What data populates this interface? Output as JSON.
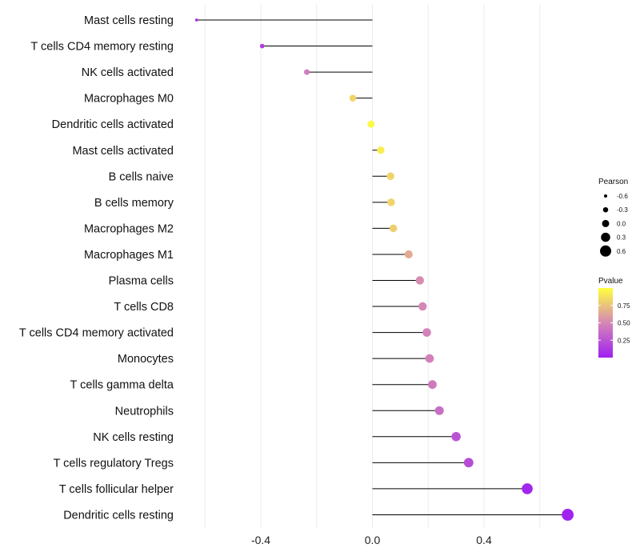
{
  "chart_data": {
    "type": "lollipop",
    "title": "",
    "xlabel": "",
    "ylabel": "",
    "xlim": [
      -0.63,
      0.715
    ],
    "x_ticks": [
      -0.4,
      0.0,
      0.4
    ],
    "x_tick_labels": [
      "-0.4",
      "0.0",
      "0.4"
    ],
    "grid": "vertical",
    "categories": [
      "Mast cells resting",
      "T cells CD4 memory resting",
      "NK cells activated",
      "Macrophages M0",
      "Dendritic cells activated",
      "Mast cells activated",
      "B cells naive",
      "B cells memory",
      "Macrophages M2",
      "Macrophages M1",
      "Plasma cells",
      "T cells CD8",
      "T cells CD4 memory activated",
      "Monocytes",
      "T cells gamma delta",
      "Neutrophils",
      "NK cells resting",
      "T cells regulatory  Tregs",
      "T cells follicular helper",
      "Dendritic cells resting"
    ],
    "values": [
      -0.63,
      -0.395,
      -0.235,
      -0.07,
      -0.005,
      0.03,
      0.065,
      0.067,
      0.075,
      0.13,
      0.17,
      0.18,
      0.195,
      0.205,
      0.215,
      0.24,
      0.3,
      0.345,
      0.555,
      0.7
    ],
    "pvalues": [
      0.08,
      0.15,
      0.45,
      0.82,
      0.97,
      0.93,
      0.82,
      0.82,
      0.8,
      0.65,
      0.52,
      0.5,
      0.48,
      0.47,
      0.43,
      0.38,
      0.25,
      0.22,
      0.03,
      0.01
    ],
    "legend": {
      "placement": "right",
      "size_title": "Pearson",
      "size_entries": [
        "-0.6",
        "-0.3",
        "0.0",
        "0.3",
        "0.6"
      ],
      "size_values": [
        -0.6,
        -0.3,
        0.0,
        0.3,
        0.6
      ],
      "color_title": "Pvalue",
      "color_ticks": [
        "0.75",
        "0.50",
        "0.25"
      ],
      "color_tick_values": [
        0.75,
        0.5,
        0.25
      ],
      "color_range": [
        0.0,
        1.0
      ],
      "color_low": "#a020f0",
      "color_high": "#ffff3f"
    },
    "colors": {
      "grid": "#ebebeb",
      "segment": "#000000",
      "legend_point": "#000000"
    }
  }
}
